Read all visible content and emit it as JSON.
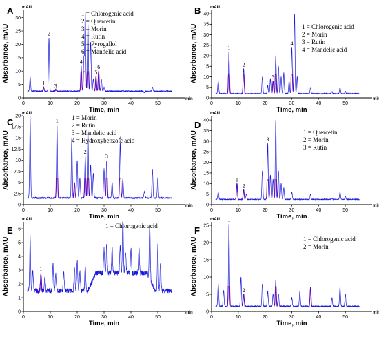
{
  "chart_data": [
    {
      "panel": "A",
      "type": "line",
      "xlabel": "Time, min",
      "ylabel": "Absorbance, mAU",
      "y_unit": "mAU",
      "x_unit": "min",
      "xlim": [
        0,
        60
      ],
      "ylim": [
        0,
        33
      ],
      "xticks": [
        "0",
        "10",
        "20",
        "30",
        "40",
        "50"
      ],
      "yticks": [
        "0",
        "5",
        "10",
        "15",
        "20",
        "25",
        "30"
      ],
      "legend": [
        "1 = Chlorogenic acid",
        "2 = Quercetin",
        "3 = Morin",
        "4 = Rutin",
        "5 = Pyrogallol",
        "6 = Mandelic acid"
      ],
      "baseline": 2.5,
      "peaks": [
        [
          2.5,
          8
        ],
        [
          7.5,
          4
        ],
        [
          9.5,
          22.5
        ],
        [
          12,
          3
        ],
        [
          15,
          2.5
        ],
        [
          21.5,
          12
        ],
        [
          22.5,
          15
        ],
        [
          23,
          32
        ],
        [
          24,
          28
        ],
        [
          25,
          21
        ],
        [
          26,
          7
        ],
        [
          27,
          8
        ],
        [
          28,
          10
        ],
        [
          29,
          7
        ],
        [
          30,
          4
        ],
        [
          37,
          3
        ],
        [
          45,
          2
        ],
        [
          48,
          4
        ]
      ],
      "peak_labels": [
        {
          "label": "1",
          "x": 7.5,
          "y": 4
        },
        {
          "label": "2",
          "x": 9.5,
          "y": 22.5
        },
        {
          "label": "3",
          "x": 12,
          "y": 3
        },
        {
          "label": "4",
          "x": 21.5,
          "y": 12
        },
        {
          "label": "5",
          "x": 27,
          "y": 8
        },
        {
          "label": "6",
          "x": 28,
          "y": 10
        }
      ],
      "highlights": [
        7.5,
        12,
        21.5,
        22.5,
        24,
        27,
        28
      ]
    },
    {
      "panel": "B",
      "type": "line",
      "xlabel": "Time, min",
      "ylabel": "Absorbance, mAU",
      "y_unit": "mAU",
      "x_unit": "min",
      "xlim": [
        0,
        60
      ],
      "ylim": [
        0,
        42
      ],
      "xticks": [
        "0",
        "10",
        "20",
        "30",
        "40",
        "50"
      ],
      "yticks": [
        "0",
        "5",
        "10",
        "15",
        "20",
        "25",
        "30",
        "35",
        "40"
      ],
      "legend": [
        "1 = Chlorogenic acid",
        "2 = Morin",
        "3 = Rutin",
        "4 = Mandelic acid"
      ],
      "baseline": 2,
      "peaks": [
        [
          2.5,
          8
        ],
        [
          6.5,
          22
        ],
        [
          12,
          14
        ],
        [
          19,
          10
        ],
        [
          21,
          6
        ],
        [
          22,
          9
        ],
        [
          23,
          8
        ],
        [
          24,
          20
        ],
        [
          25,
          15
        ],
        [
          26,
          10
        ],
        [
          27,
          12
        ],
        [
          29,
          8
        ],
        [
          30,
          24
        ],
        [
          31,
          40
        ],
        [
          32,
          10
        ],
        [
          37,
          5
        ],
        [
          45,
          3
        ],
        [
          48,
          5
        ],
        [
          50,
          3
        ]
      ],
      "peak_labels": [
        {
          "label": "1",
          "x": 6.5,
          "y": 22
        },
        {
          "label": "2",
          "x": 12,
          "y": 14
        },
        {
          "label": "3",
          "x": 23,
          "y": 8
        },
        {
          "label": "4",
          "x": 30,
          "y": 24
        }
      ],
      "highlights": [
        6.5,
        12,
        23,
        24,
        30
      ]
    },
    {
      "panel": "C",
      "type": "line",
      "xlabel": "Time, min",
      "ylabel": "Absorbance, mAU",
      "y_unit": "mAU",
      "x_unit": "min",
      "xlim": [
        0,
        60
      ],
      "ylim": [
        0,
        20
      ],
      "xticks": [
        "0",
        "10",
        "20",
        "30",
        "40",
        "50"
      ],
      "yticks": [
        "0",
        "2.5",
        "5",
        "7.5",
        "10",
        "12.5",
        "15",
        "17.5",
        "20"
      ],
      "legend": [
        "1 = Morin",
        "2 = Rutin",
        "3 = Mandelic acid",
        "4 = Hydroxybenzoic acid"
      ],
      "baseline": 1.5,
      "peaks": [
        [
          2.5,
          20
        ],
        [
          12.5,
          18
        ],
        [
          18,
          15
        ],
        [
          19,
          5
        ],
        [
          20,
          10
        ],
        [
          21,
          6
        ],
        [
          23,
          11
        ],
        [
          24,
          17
        ],
        [
          25,
          9
        ],
        [
          26,
          7
        ],
        [
          30,
          8
        ],
        [
          31,
          10
        ],
        [
          33,
          5
        ],
        [
          36,
          14
        ],
        [
          37,
          6
        ],
        [
          45,
          3
        ],
        [
          48,
          8
        ],
        [
          50,
          6
        ]
      ],
      "peak_labels": [
        {
          "label": "1",
          "x": 12.5,
          "y": 18
        },
        {
          "label": "2",
          "x": 23,
          "y": 11
        },
        {
          "label": "3",
          "x": 31,
          "y": 10
        },
        {
          "label": "4",
          "x": 36,
          "y": 14
        }
      ],
      "highlights": [
        12.5,
        19,
        23,
        24,
        31,
        36
      ]
    },
    {
      "panel": "D",
      "type": "line",
      "xlabel": "Time, min",
      "ylabel": "Absorbance, mAU",
      "y_unit": "mAU",
      "x_unit": "min",
      "xlim": [
        0,
        60
      ],
      "ylim": [
        0,
        42
      ],
      "xticks": [
        "0",
        "10",
        "20",
        "30",
        "40",
        "50"
      ],
      "yticks": [
        "0",
        "5",
        "10",
        "15",
        "20",
        "25",
        "30",
        "35",
        "40"
      ],
      "legend": [
        "1 = Quercetin",
        "2 = Morin",
        "3 = Rutin"
      ],
      "baseline": 2.5,
      "peaks": [
        [
          2.5,
          6
        ],
        [
          9.5,
          10
        ],
        [
          12,
          7
        ],
        [
          13,
          5
        ],
        [
          19,
          16
        ],
        [
          21,
          29
        ],
        [
          22,
          14
        ],
        [
          23,
          12
        ],
        [
          24,
          40
        ],
        [
          25,
          16
        ],
        [
          26,
          10
        ],
        [
          27,
          8
        ],
        [
          30,
          6
        ],
        [
          37,
          5
        ],
        [
          45,
          3
        ],
        [
          48,
          6
        ],
        [
          50,
          4
        ]
      ],
      "peak_labels": [
        {
          "label": "1",
          "x": 9.5,
          "y": 10
        },
        {
          "label": "2",
          "x": 12,
          "y": 7
        },
        {
          "label": "3",
          "x": 21,
          "y": 29
        }
      ],
      "highlights": [
        9.5,
        12,
        21,
        24
      ]
    },
    {
      "panel": "E",
      "type": "line",
      "xlabel": "Time, min",
      "ylabel": "Absorbance, mAU",
      "y_unit": "mAU",
      "x_unit": "min",
      "xlim": [
        0,
        60
      ],
      "ylim": [
        0,
        6.5
      ],
      "xticks": [
        "0",
        "10",
        "20",
        "30",
        "40",
        "50"
      ],
      "yticks": [
        "0",
        "1",
        "2",
        "3",
        "4",
        "5",
        "6"
      ],
      "legend": [
        "1 = Chlorogenic acid"
      ],
      "baseline": 1.5,
      "peaks": [
        [
          2.5,
          5.5
        ],
        [
          3.5,
          3
        ],
        [
          6.5,
          2.8
        ],
        [
          8,
          2.5
        ],
        [
          11,
          3.5
        ],
        [
          12,
          2.7
        ],
        [
          15,
          2.8
        ],
        [
          19,
          3.2
        ],
        [
          20,
          3.7
        ],
        [
          21,
          2.9
        ],
        [
          23,
          3.3
        ],
        [
          30,
          3.2
        ],
        [
          31,
          3.6
        ],
        [
          33,
          3.3
        ],
        [
          36,
          3.5
        ],
        [
          37,
          5.7
        ],
        [
          38,
          3
        ],
        [
          40,
          3.2
        ],
        [
          43,
          3.3
        ],
        [
          47,
          5.5
        ],
        [
          50,
          4.8
        ],
        [
          51,
          3.5
        ]
      ],
      "peak_labels": [
        {
          "label": "1",
          "x": 6.5,
          "y": 2.8
        }
      ],
      "highlights": [
        6.5
      ],
      "hump": [
        27,
        46,
        1.3
      ]
    },
    {
      "panel": "F",
      "type": "line",
      "xlabel": "Time, min",
      "ylabel": "Absorbance, mAU",
      "y_unit": "mAU",
      "x_unit": "min",
      "xlim": [
        0,
        60
      ],
      "ylim": [
        0,
        26
      ],
      "xticks": [
        "0",
        "10",
        "20",
        "30",
        "40",
        "50"
      ],
      "yticks": [
        "0",
        "5",
        "10",
        "15",
        "20",
        "25"
      ],
      "legend": [
        "1 = Chlorogenic acid",
        "2 = Morin"
      ],
      "baseline": 1.5,
      "peaks": [
        [
          2.5,
          8
        ],
        [
          4.5,
          6
        ],
        [
          6.5,
          25.5
        ],
        [
          11,
          10
        ],
        [
          12,
          5
        ],
        [
          19,
          8
        ],
        [
          21,
          6
        ],
        [
          23,
          5
        ],
        [
          24,
          9
        ],
        [
          25,
          5
        ],
        [
          30,
          4
        ],
        [
          33,
          6
        ],
        [
          37,
          7
        ],
        [
          45,
          4
        ],
        [
          48,
          7
        ],
        [
          50,
          5
        ]
      ],
      "peak_labels": [
        {
          "label": "1",
          "x": 6.5,
          "y": 25.5
        },
        {
          "label": "2",
          "x": 12,
          "y": 5
        }
      ],
      "highlights": [
        6.5,
        12,
        24,
        37
      ]
    }
  ],
  "colors": {
    "trace": "#1a1adb",
    "highlight": "#e0208a",
    "axis": "#000000",
    "text": "#000000"
  }
}
